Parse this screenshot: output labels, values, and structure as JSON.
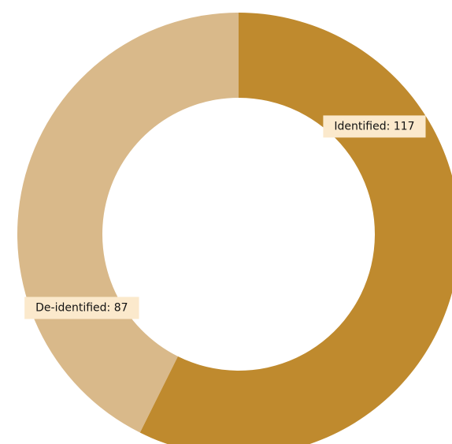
{
  "chart_data": {
    "type": "donut",
    "values": [
      117,
      87
    ],
    "value_labels": [
      "Identified: 117",
      "De-identified: 87"
    ],
    "colors": [
      "#bf8a2e",
      "#d9b98a"
    ]
  }
}
